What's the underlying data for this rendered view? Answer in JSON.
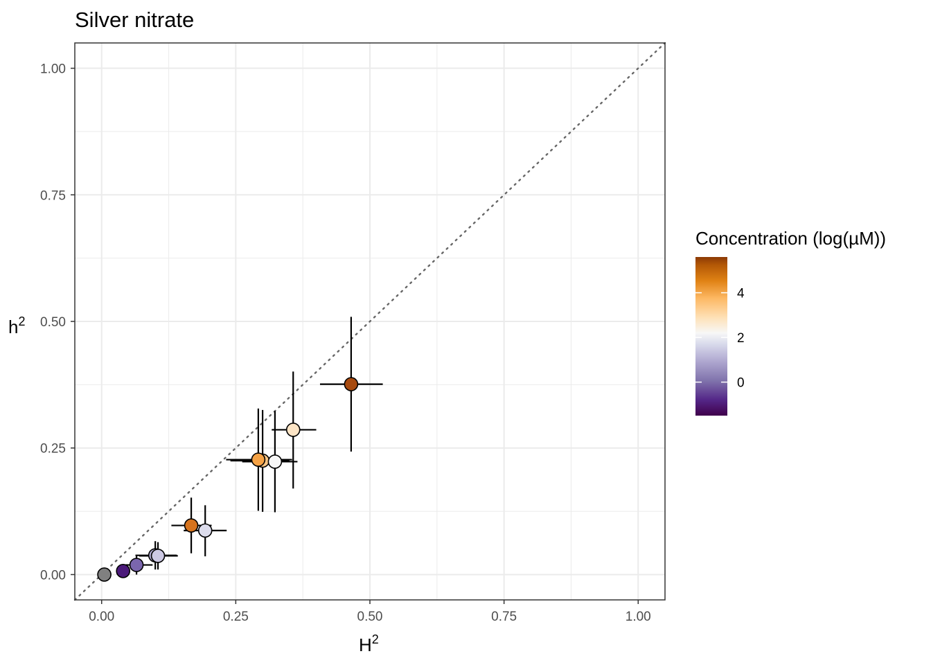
{
  "chart_data": {
    "type": "scatter",
    "title": "Silver nitrate",
    "xlabel": {
      "base": "H",
      "sup": "2"
    },
    "ylabel": {
      "base": "h",
      "sup": "2"
    },
    "xlim": [
      -0.05,
      1.05
    ],
    "ylim": [
      -0.05,
      1.05
    ],
    "x_ticks": [
      0.0,
      0.25,
      0.5,
      0.75,
      1.0
    ],
    "x_tick_labels": [
      "0.00",
      "0.25",
      "0.50",
      "0.75",
      "1.00"
    ],
    "y_ticks": [
      0.0,
      0.25,
      0.5,
      0.75,
      1.0
    ],
    "y_tick_labels": [
      "0.00",
      "0.25",
      "0.50",
      "0.75",
      "1.00"
    ],
    "grid": true,
    "reference_line": {
      "slope": 1,
      "intercept": 0,
      "style": "dotted",
      "color": "#666666"
    },
    "legend": {
      "title": "Concentration (log(µM))",
      "placement": "right",
      "type": "colorbar",
      "range": [
        -1.5,
        5.6
      ],
      "ticks": [
        0,
        2,
        4
      ],
      "tick_labels": [
        "0",
        "2",
        "4"
      ],
      "colors": [
        "#40004b",
        "#542788",
        "#8073ac",
        "#b2abd2",
        "#d8daeb",
        "#f7f7f7",
        "#fee0b6",
        "#fdb863",
        "#e08214",
        "#b35806",
        "#8c3a05"
      ]
    },
    "points": [
      {
        "x": 0.005,
        "y": 0.0,
        "x_err": [
          0.005,
          0.005
        ],
        "y_err": [
          0.0,
          0.0
        ],
        "concentration": null,
        "color": "#808080"
      },
      {
        "x": 0.04,
        "y": 0.007,
        "x_err": [
          0.035,
          0.045
        ],
        "y_err": [
          0.003,
          0.01
        ],
        "concentration": -1.0,
        "color": "#4b1a7a"
      },
      {
        "x": 0.065,
        "y": 0.019,
        "x_err": [
          0.045,
          0.095
        ],
        "y_err": [
          0.0,
          0.038
        ],
        "concentration": 0.0,
        "color": "#7a66ad"
      },
      {
        "x": 0.1,
        "y": 0.038,
        "x_err": [
          0.063,
          0.14
        ],
        "y_err": [
          0.01,
          0.066
        ],
        "concentration": 1.0,
        "color": "#b2abd2"
      },
      {
        "x": 0.105,
        "y": 0.037,
        "x_err": [
          0.07,
          0.142
        ],
        "y_err": [
          0.01,
          0.064
        ],
        "concentration": 1.5,
        "color": "#ccc8e3"
      },
      {
        "x": 0.167,
        "y": 0.097,
        "x_err": [
          0.13,
          0.205
        ],
        "y_err": [
          0.042,
          0.152
        ],
        "concentration": 4.8,
        "color": "#d6731d"
      },
      {
        "x": 0.193,
        "y": 0.087,
        "x_err": [
          0.153,
          0.233
        ],
        "y_err": [
          0.036,
          0.137
        ],
        "concentration": 1.8,
        "color": "#dcdcec"
      },
      {
        "x": 0.3,
        "y": 0.225,
        "x_err": [
          0.24,
          0.35
        ],
        "y_err": [
          0.124,
          0.325
        ],
        "concentration": 3.8,
        "color": "#fcc684"
      },
      {
        "x": 0.292,
        "y": 0.227,
        "x_err": [
          0.232,
          0.355
        ],
        "y_err": [
          0.126,
          0.328
        ],
        "concentration": 4.3,
        "color": "#f5a245"
      },
      {
        "x": 0.323,
        "y": 0.223,
        "x_err": [
          0.262,
          0.365
        ],
        "y_err": [
          0.123,
          0.323
        ],
        "concentration": 2.2,
        "color": "#f7f7f7"
      },
      {
        "x": 0.357,
        "y": 0.286,
        "x_err": [
          0.317,
          0.4
        ],
        "y_err": [
          0.17,
          0.401
        ],
        "concentration": 3.2,
        "color": "#fde5c6"
      },
      {
        "x": 0.465,
        "y": 0.376,
        "x_err": [
          0.407,
          0.524
        ],
        "y_err": [
          0.243,
          0.509
        ],
        "concentration": 5.6,
        "color": "#a74a0f"
      }
    ]
  }
}
